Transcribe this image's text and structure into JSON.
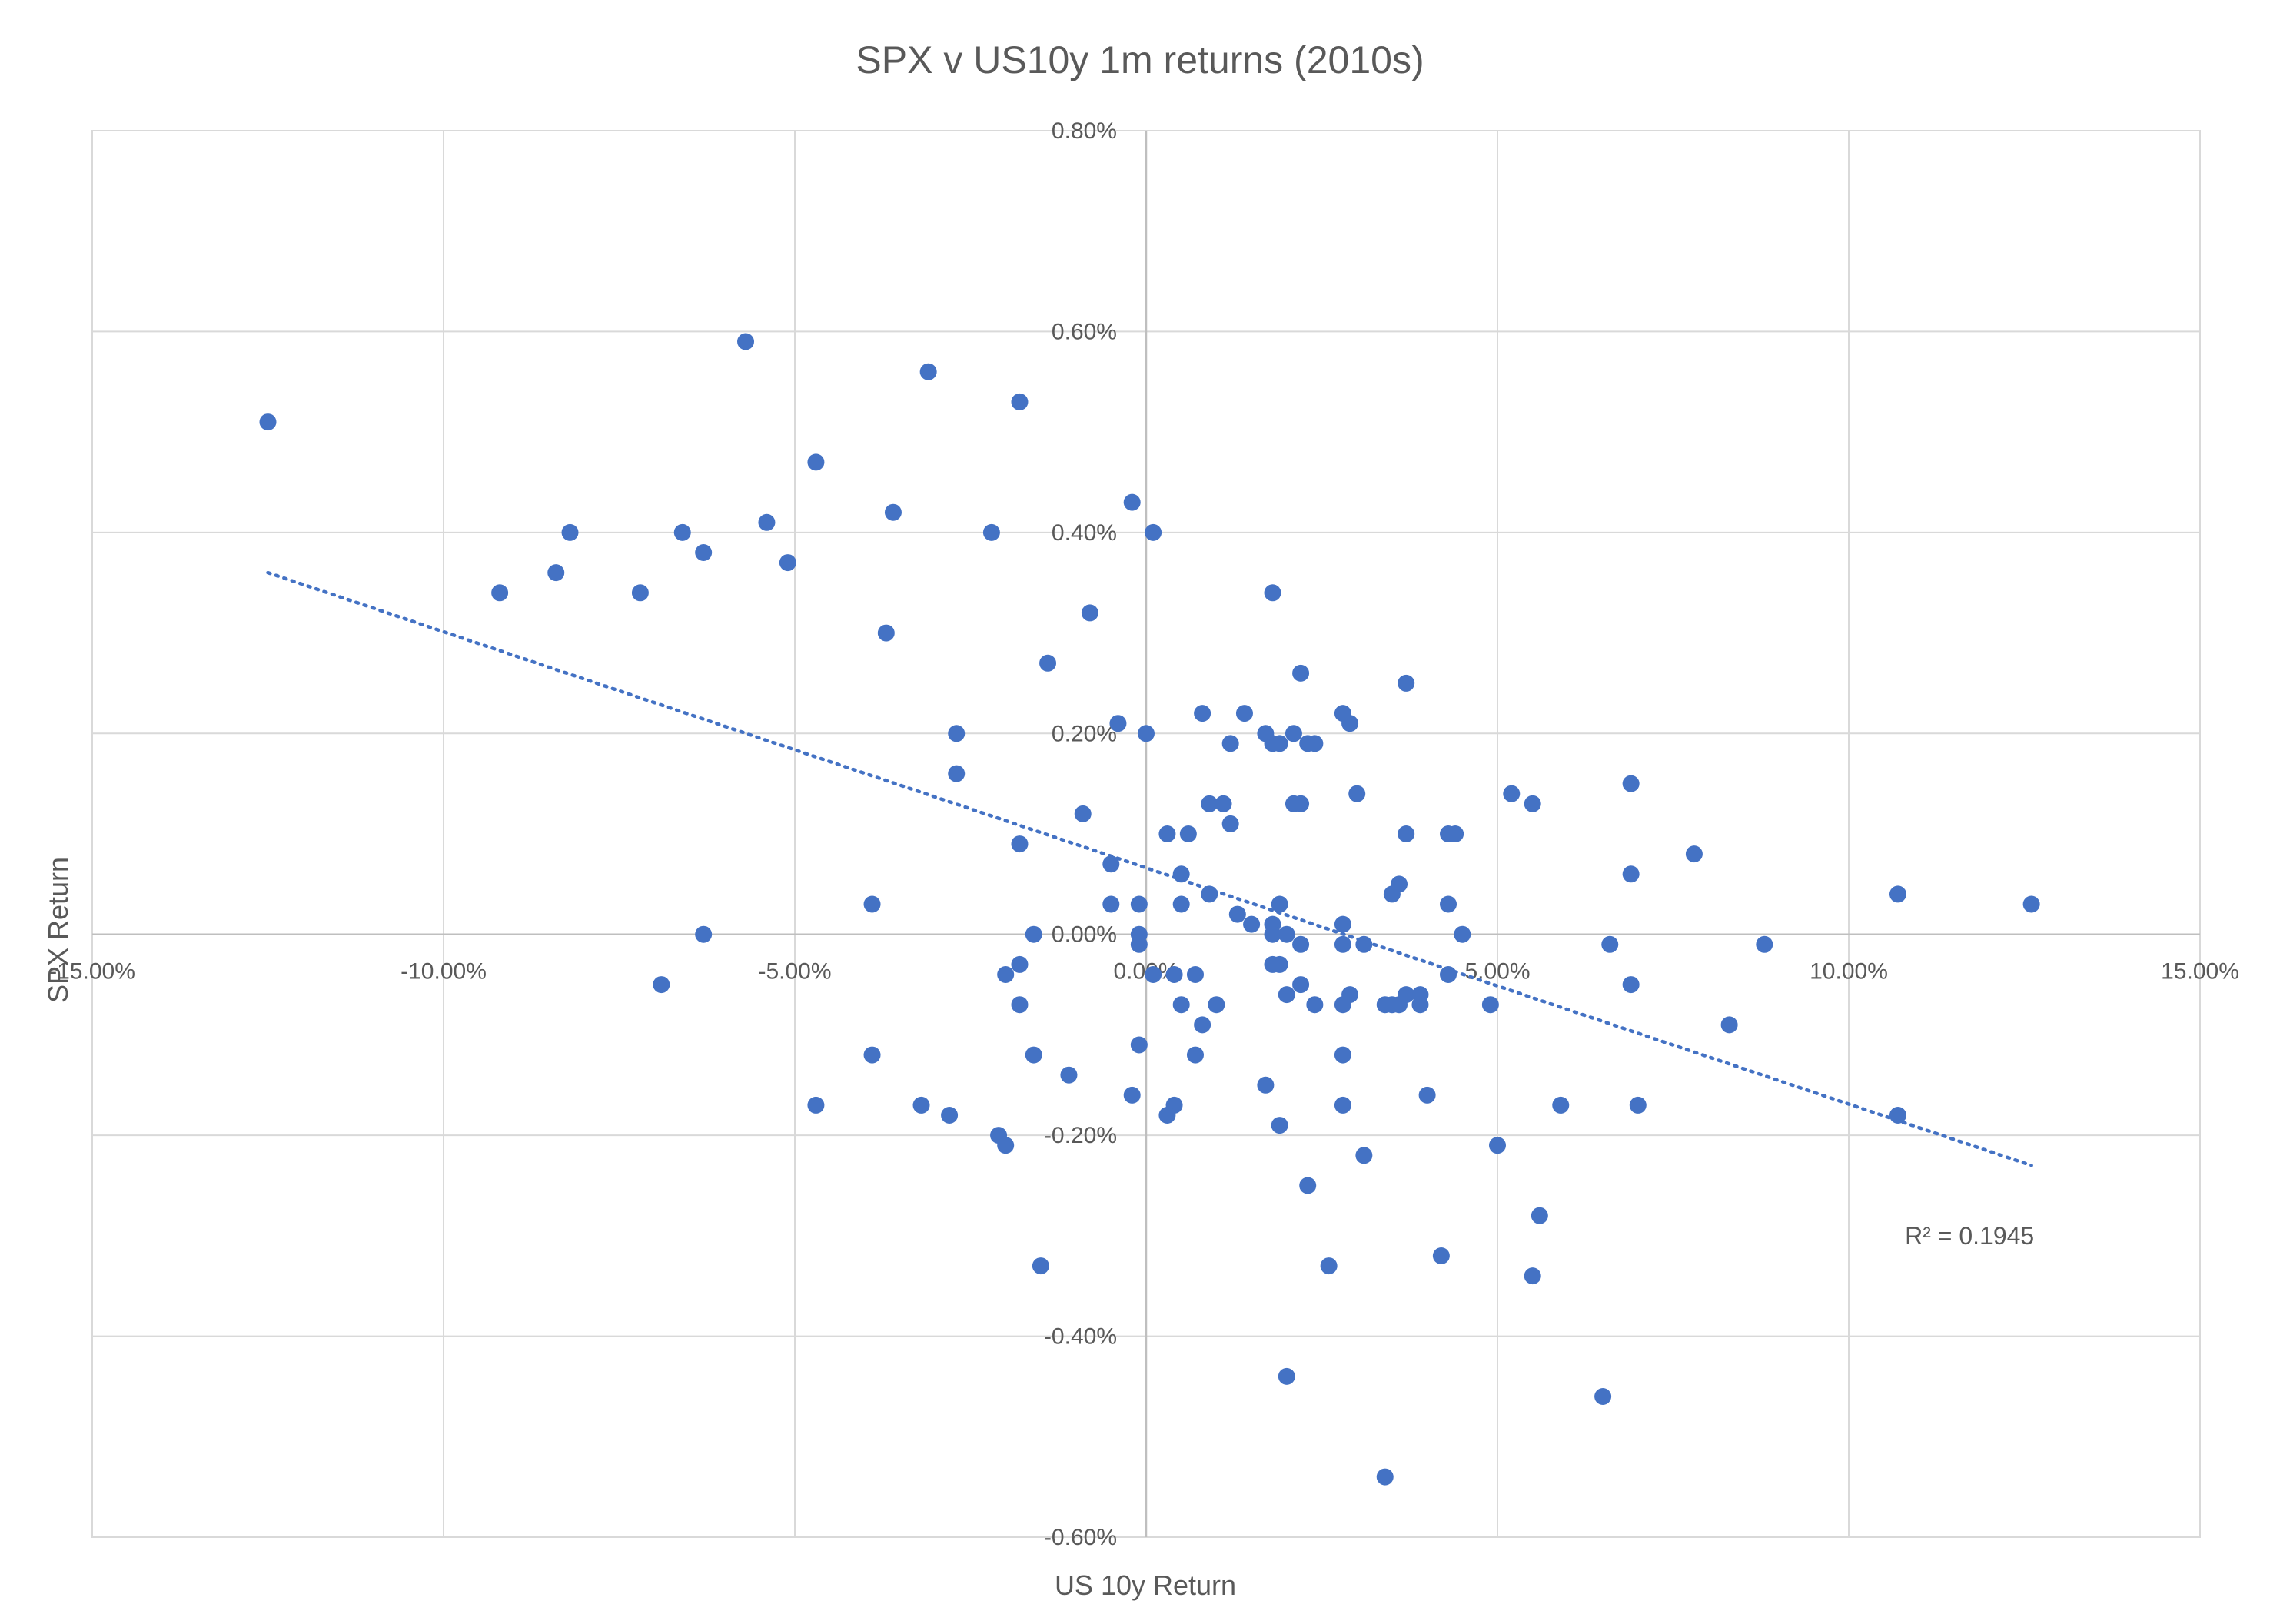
{
  "chart_data": {
    "type": "scatter",
    "title": "SPX v US10y 1m returns (2010s)",
    "xlabel": "US 10y Return",
    "ylabel": "SPX Return",
    "xlim": [
      -0.15,
      0.15
    ],
    "ylim": [
      -0.006,
      0.008
    ],
    "xticks": [
      -0.15,
      -0.1,
      -0.05,
      0.0,
      0.05,
      0.1,
      0.15
    ],
    "xtick_labels": [
      "-15.00%",
      "-10.00%",
      "-5.00%",
      "0.00%",
      "5.00%",
      "10.00%",
      "15.00%"
    ],
    "yticks": [
      -0.006,
      -0.004,
      -0.002,
      0.0,
      0.002,
      0.004,
      0.006,
      0.008
    ],
    "ytick_labels": [
      "-0.60%",
      "-0.40%",
      "-0.20%",
      "0.00%",
      "0.20%",
      "0.40%",
      "0.60%",
      "0.80%"
    ],
    "grid": true,
    "point_color": "#4472C4",
    "trendline": {
      "type": "linear",
      "x_range": [
        -0.125,
        0.126
      ],
      "y_at_x_start": 0.0036,
      "y_at_x_end": -0.0023,
      "style": "dotted",
      "color": "#4472C4",
      "label": "R² = 0.1945"
    },
    "points": [
      [
        -0.125,
        0.0051
      ],
      [
        -0.057,
        0.0059
      ],
      [
        -0.031,
        0.0056
      ],
      [
        -0.018,
        0.0053
      ],
      [
        -0.047,
        0.0047
      ],
      [
        -0.002,
        0.0043
      ],
      [
        -0.066,
        0.004
      ],
      [
        -0.082,
        0.004
      ],
      [
        -0.054,
        0.0041
      ],
      [
        -0.036,
        0.0042
      ],
      [
        -0.022,
        0.004
      ],
      [
        0.001,
        0.004
      ],
      [
        -0.063,
        0.0038
      ],
      [
        -0.051,
        0.0037
      ],
      [
        -0.084,
        0.0036
      ],
      [
        -0.092,
        0.0034
      ],
      [
        -0.072,
        0.0034
      ],
      [
        0.018,
        0.0034
      ],
      [
        -0.008,
        0.0032
      ],
      [
        -0.037,
        0.003
      ],
      [
        -0.014,
        0.0027
      ],
      [
        0.022,
        0.0026
      ],
      [
        0.037,
        0.0025
      ],
      [
        0.008,
        0.0022
      ],
      [
        0.014,
        0.0022
      ],
      [
        0.028,
        0.0022
      ],
      [
        -0.027,
        0.002
      ],
      [
        -0.004,
        0.0021
      ],
      [
        0.0,
        0.002
      ],
      [
        0.017,
        0.002
      ],
      [
        0.021,
        0.002
      ],
      [
        0.029,
        0.0021
      ],
      [
        0.012,
        0.0019
      ],
      [
        0.018,
        0.0019
      ],
      [
        0.019,
        0.0019
      ],
      [
        0.023,
        0.0019
      ],
      [
        0.024,
        0.0019
      ],
      [
        -0.027,
        0.0016
      ],
      [
        0.03,
        0.0014
      ],
      [
        0.052,
        0.0014
      ],
      [
        0.055,
        0.0013
      ],
      [
        0.069,
        0.0015
      ],
      [
        0.009,
        0.0013
      ],
      [
        0.011,
        0.0013
      ],
      [
        0.021,
        0.0013
      ],
      [
        0.022,
        0.0013
      ],
      [
        -0.009,
        0.0012
      ],
      [
        0.012,
        0.0011
      ],
      [
        0.006,
        0.001
      ],
      [
        0.003,
        0.001
      ],
      [
        0.037,
        0.001
      ],
      [
        0.043,
        0.001
      ],
      [
        0.044,
        0.001
      ],
      [
        -0.018,
        0.0009
      ],
      [
        0.078,
        0.0008
      ],
      [
        -0.005,
        0.0007
      ],
      [
        0.005,
        0.0006
      ],
      [
        0.069,
        0.0006
      ],
      [
        0.036,
        0.0005
      ],
      [
        0.035,
        0.0004
      ],
      [
        0.107,
        0.0004
      ],
      [
        0.009,
        0.0004
      ],
      [
        0.005,
        0.0003
      ],
      [
        0.019,
        0.0003
      ],
      [
        -0.001,
        0.0003
      ],
      [
        -0.005,
        0.0003
      ],
      [
        -0.039,
        0.0003
      ],
      [
        0.126,
        0.0003
      ],
      [
        0.013,
        0.0002
      ],
      [
        0.043,
        0.0003
      ],
      [
        0.028,
        0.0001
      ],
      [
        0.015,
        0.0001
      ],
      [
        0.018,
        0.0001
      ],
      [
        -0.016,
        0.0
      ],
      [
        -0.063,
        0.0
      ],
      [
        -0.001,
        0.0
      ],
      [
        0.018,
        0.0
      ],
      [
        0.02,
        0.0
      ],
      [
        0.045,
        0.0
      ],
      [
        0.022,
        -0.0001
      ],
      [
        0.028,
        -0.0001
      ],
      [
        0.031,
        -0.0001
      ],
      [
        0.066,
        -0.0001
      ],
      [
        0.088,
        -0.0001
      ],
      [
        -0.001,
        -0.0001
      ],
      [
        -0.018,
        -0.0003
      ],
      [
        0.018,
        -0.0003
      ],
      [
        0.019,
        -0.0003
      ],
      [
        0.001,
        -0.0004
      ],
      [
        -0.02,
        -0.0004
      ],
      [
        0.007,
        -0.0004
      ],
      [
        0.004,
        -0.0004
      ],
      [
        0.043,
        -0.0004
      ],
      [
        -0.069,
        -0.0005
      ],
      [
        0.022,
        -0.0005
      ],
      [
        0.029,
        -0.0006
      ],
      [
        0.069,
        -0.0005
      ],
      [
        0.036,
        -0.0007
      ],
      [
        0.037,
        -0.0006
      ],
      [
        0.034,
        -0.0007
      ],
      [
        0.039,
        -0.0007
      ],
      [
        -0.018,
        -0.0007
      ],
      [
        0.02,
        -0.0006
      ],
      [
        0.024,
        -0.0007
      ],
      [
        0.028,
        -0.0007
      ],
      [
        0.035,
        -0.0007
      ],
      [
        0.039,
        -0.0006
      ],
      [
        0.01,
        -0.0007
      ],
      [
        0.005,
        -0.0007
      ],
      [
        0.049,
        -0.0007
      ],
      [
        0.008,
        -0.0009
      ],
      [
        0.083,
        -0.0009
      ],
      [
        -0.001,
        -0.0011
      ],
      [
        -0.016,
        -0.0012
      ],
      [
        -0.039,
        -0.0012
      ],
      [
        0.007,
        -0.0012
      ],
      [
        0.028,
        -0.0012
      ],
      [
        -0.011,
        -0.0014
      ],
      [
        0.017,
        -0.0015
      ],
      [
        -0.002,
        -0.0016
      ],
      [
        0.004,
        -0.0017
      ],
      [
        0.04,
        -0.0016
      ],
      [
        0.028,
        -0.0017
      ],
      [
        -0.047,
        -0.0017
      ],
      [
        -0.032,
        -0.0017
      ],
      [
        -0.028,
        -0.0018
      ],
      [
        0.003,
        -0.0018
      ],
      [
        0.059,
        -0.0017
      ],
      [
        0.07,
        -0.0017
      ],
      [
        0.107,
        -0.0018
      ],
      [
        -0.021,
        -0.002
      ],
      [
        -0.02,
        -0.0021
      ],
      [
        0.019,
        -0.0019
      ],
      [
        0.05,
        -0.0021
      ],
      [
        0.031,
        -0.0022
      ],
      [
        0.023,
        -0.0025
      ],
      [
        0.056,
        -0.0028
      ],
      [
        -0.015,
        -0.0033
      ],
      [
        0.026,
        -0.0033
      ],
      [
        0.042,
        -0.0032
      ],
      [
        0.055,
        -0.0034
      ],
      [
        0.02,
        -0.0044
      ],
      [
        0.065,
        -0.0046
      ],
      [
        0.034,
        -0.0054
      ]
    ]
  }
}
